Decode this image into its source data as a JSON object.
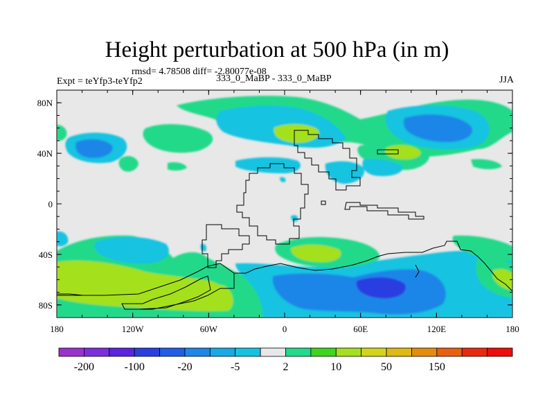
{
  "title": "Height perturbation at 500 hPa (in m)",
  "rmsd_text": "rmsd= 4.78508 diff= -2.80077e-08",
  "expt_text": "Expt = teYfp3-teYfp2",
  "center_text": "333_0_MaBP - 333_0_MaBP",
  "season_text": "JJA",
  "map": {
    "lon_range": [
      -180,
      180
    ],
    "lat_range": [
      -90,
      90
    ],
    "lat_ticks": [
      {
        "value": 80,
        "label": "80N"
      },
      {
        "value": 40,
        "label": "40N"
      },
      {
        "value": 0,
        "label": "0"
      },
      {
        "value": -40,
        "label": "40S"
      },
      {
        "value": -80,
        "label": "80S"
      }
    ],
    "lon_ticks": [
      {
        "value": -180,
        "label": "180"
      },
      {
        "value": -120,
        "label": "120W"
      },
      {
        "value": -60,
        "label": "60W"
      },
      {
        "value": 0,
        "label": "0"
      },
      {
        "value": 60,
        "label": "60E"
      },
      {
        "value": 120,
        "label": "120E"
      },
      {
        "value": 180,
        "label": "180"
      }
    ],
    "background_color": "#e8e8e8"
  },
  "colorbar": {
    "colors": [
      "#9a32cd",
      "#7b2fdb",
      "#5a24e0",
      "#2b3ee0",
      "#1f5ee6",
      "#1f86e8",
      "#17a9e3",
      "#15c3e0",
      "#e8e8e8",
      "#23d98a",
      "#3fd41e",
      "#a4e01f",
      "#d4d41a",
      "#e0b814",
      "#e48c10",
      "#e8600e",
      "#ea2a10",
      "#ee0c0c"
    ],
    "labels": [
      {
        "after_box": 1,
        "text": "-200"
      },
      {
        "after_box": 3,
        "text": "-100"
      },
      {
        "after_box": 5,
        "text": "-20"
      },
      {
        "after_box": 7,
        "text": "-5"
      },
      {
        "after_box": 9,
        "text": "2"
      },
      {
        "after_box": 11,
        "text": "10"
      },
      {
        "after_box": 13,
        "text": "50"
      },
      {
        "after_box": 15,
        "text": "150"
      }
    ]
  }
}
